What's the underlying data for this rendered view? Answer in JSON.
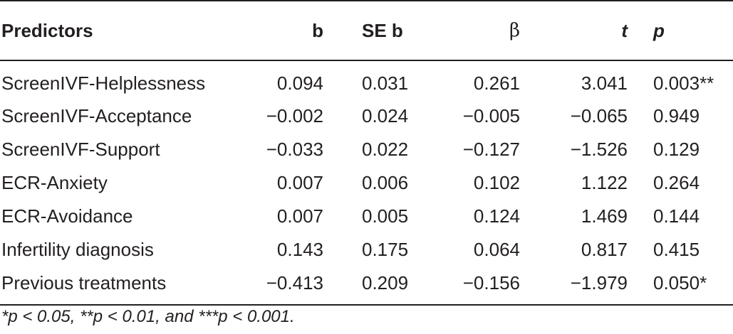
{
  "table": {
    "headers": {
      "predictors": "Predictors",
      "b": "b",
      "se_b": "SE b",
      "beta": "β",
      "t": "t",
      "p": "p"
    },
    "rows": [
      {
        "predictor": "ScreenIVF-Helplessness",
        "b": "0.094",
        "se_b": "0.031",
        "beta": "0.261",
        "t": "3.041",
        "p": "0.003**"
      },
      {
        "predictor": "ScreenIVF-Acceptance",
        "b": "−0.002",
        "se_b": "0.024",
        "beta": "−0.005",
        "t": "−0.065",
        "p": "0.949"
      },
      {
        "predictor": "ScreenIVF-Support",
        "b": "−0.033",
        "se_b": "0.022",
        "beta": "−0.127",
        "t": "−1.526",
        "p": "0.129"
      },
      {
        "predictor": "ECR-Anxiety",
        "b": "0.007",
        "se_b": "0.006",
        "beta": "0.102",
        "t": "1.122",
        "p": "0.264"
      },
      {
        "predictor": "ECR-Avoidance",
        "b": "0.007",
        "se_b": "0.005",
        "beta": "0.124",
        "t": "1.469",
        "p": "0.144"
      },
      {
        "predictor": "Infertility diagnosis",
        "b": "0.143",
        "se_b": "0.175",
        "beta": "0.064",
        "t": "0.817",
        "p": "0.415"
      },
      {
        "predictor": "Previous treatments",
        "b": "−0.413",
        "se_b": "0.209",
        "beta": "−0.156",
        "t": "−1.979",
        "p": "0.050*"
      }
    ]
  },
  "footnote": "*p < 0.05, **p < 0.01, and ***p < 0.001."
}
